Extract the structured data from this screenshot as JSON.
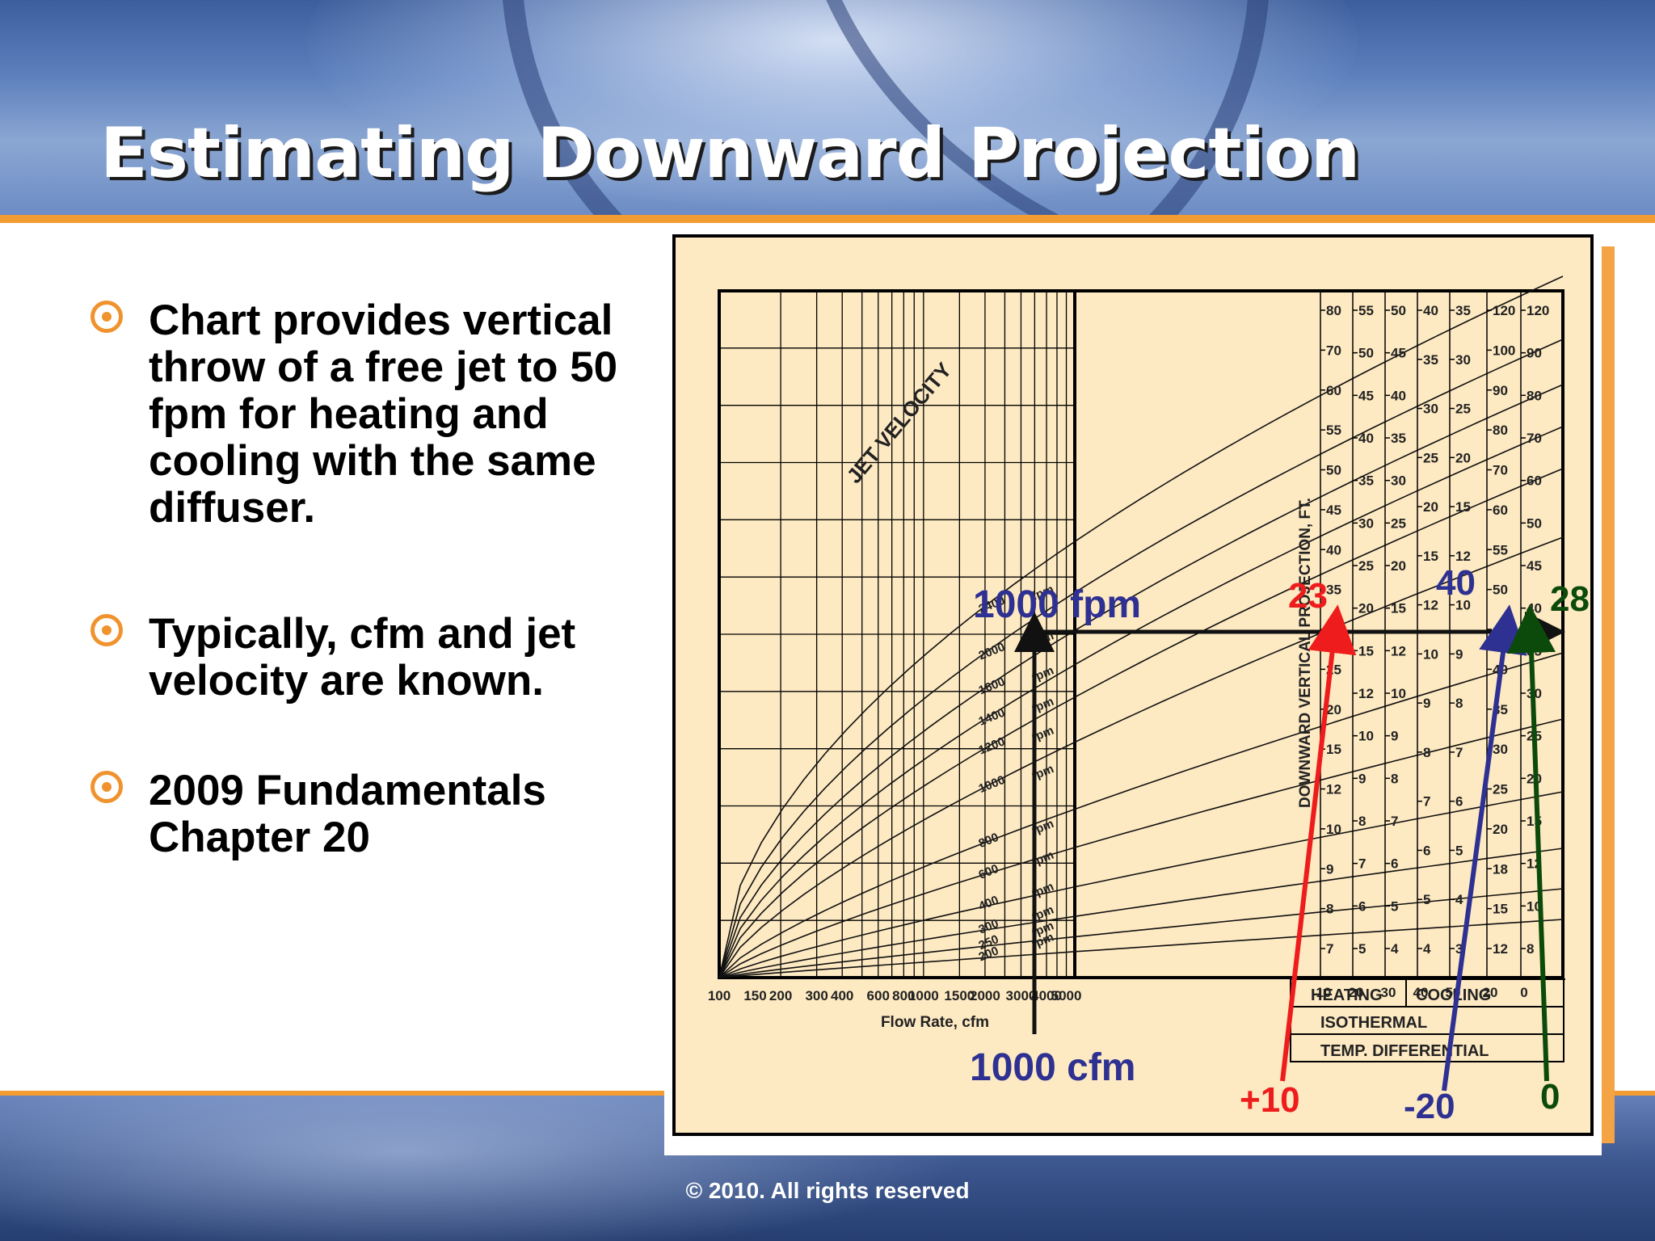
{
  "slide": {
    "title": "Estimating Downward Projection",
    "footer": "© 2010. All rights reserved"
  },
  "bullets": [
    {
      "text": "Chart provides vertical throw of a free jet to 50 fpm for heating and cooling with the same diffuser."
    },
    {
      "text": "Typically, cfm and jet velocity are known."
    },
    {
      "text": "2009 Fundamentals Chapter 20"
    }
  ],
  "colors": {
    "accent": "#f39c32",
    "chart_bg": "#fde9c2",
    "red": "#ee1c1c",
    "blue": "#2e3192",
    "green": "#0b4a0b"
  },
  "chart_data": {
    "type": "line",
    "xlabel": "Flow Rate, cfm",
    "x_scale": "log",
    "x_ticks": [
      100,
      150,
      200,
      300,
      400,
      600,
      800,
      1000,
      1500,
      2000,
      3000,
      4000,
      5000
    ],
    "curve_label": "JET VELOCITY",
    "series": [
      {
        "name": "2400 fpm",
        "label": "2400",
        "unit": "fpm"
      },
      {
        "name": "2000 fpm",
        "label": "2000",
        "unit": "fpm"
      },
      {
        "name": "1600 fpm",
        "label": "1600",
        "unit": "fpm"
      },
      {
        "name": "1400 fpm",
        "label": "1400",
        "unit": "fpm"
      },
      {
        "name": "1200 fpm",
        "label": "1200",
        "unit": "fpm"
      },
      {
        "name": "1000 fpm",
        "label": "1000",
        "unit": "fpm"
      },
      {
        "name": "800 fpm",
        "label": "800",
        "unit": "fpm"
      },
      {
        "name": "600 fpm",
        "label": "600",
        "unit": "fpm"
      },
      {
        "name": "400 fpm",
        "label": "400",
        "unit": "fpm"
      },
      {
        "name": "300 fpm",
        "label": "300",
        "unit": "fpm"
      },
      {
        "name": "250 fpm",
        "label": "250",
        "unit": "fpm"
      },
      {
        "name": "200 fpm",
        "label": "200",
        "unit": "fpm"
      }
    ],
    "projection_axis_label": "DOWNWARD VERTICAL PROJECTION, FT.",
    "projection_scales": [
      {
        "temp": "10",
        "ticks": [
          "80",
          "70",
          "60",
          "55",
          "50",
          "45",
          "40",
          "35",
          "30",
          "25",
          "20",
          "15",
          "12",
          "10",
          "9",
          "8",
          "7"
        ]
      },
      {
        "temp": "20",
        "ticks": [
          "55",
          "50",
          "45",
          "40",
          "35",
          "30",
          "25",
          "20",
          "15",
          "12",
          "10",
          "9",
          "8",
          "7",
          "6",
          "5"
        ]
      },
      {
        "temp": "30",
        "ticks": [
          "50",
          "45",
          "40",
          "35",
          "30",
          "25",
          "20",
          "15",
          "12",
          "10",
          "9",
          "8",
          "7",
          "6",
          "5",
          "4"
        ]
      },
      {
        "temp": "40",
        "ticks": [
          "40",
          "35",
          "30",
          "25",
          "20",
          "15",
          "12",
          "10",
          "9",
          "8",
          "7",
          "6",
          "5",
          "4"
        ]
      },
      {
        "temp": "50",
        "ticks": [
          "35",
          "30",
          "25",
          "20",
          "15",
          "12",
          "10",
          "9",
          "8",
          "7",
          "6",
          "5",
          "4",
          "3"
        ]
      },
      {
        "temp": "20",
        "ticks": [
          "120",
          "100",
          "90",
          "80",
          "70",
          "60",
          "55",
          "50",
          "45",
          "40",
          "35",
          "30",
          "25",
          "20",
          "18",
          "15",
          "12"
        ]
      },
      {
        "temp": "0",
        "ticks": [
          "120",
          "90",
          "80",
          "70",
          "60",
          "50",
          "45",
          "40",
          "35",
          "30",
          "25",
          "20",
          "15",
          "12",
          "10",
          "8"
        ]
      }
    ],
    "temp_box": {
      "heating": "HEATING",
      "cooling": "COOLING",
      "isothermal": "ISOTHERMAL",
      "temp_diff": "TEMP. DIFFERENTIAL"
    },
    "annotations": {
      "velocity": "1000 fpm",
      "flow": "1000 cfm",
      "heating_result": "23",
      "cooling_result": "40",
      "isothermal_result": "28",
      "heating_td": "+10",
      "cooling_td": "-20",
      "isothermal_td": "0"
    }
  }
}
